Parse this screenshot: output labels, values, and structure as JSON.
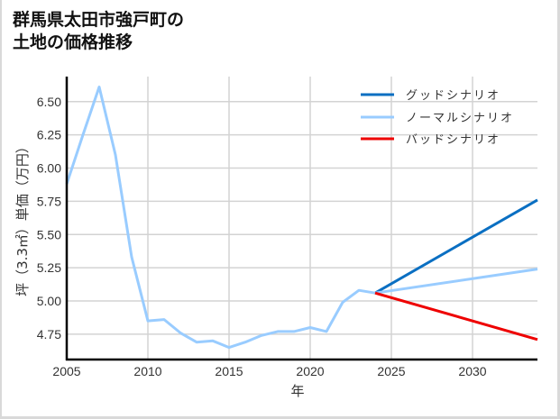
{
  "title_line1": "群馬県太田市強戸町の",
  "title_line2": "土地の価格推移",
  "chart_data": {
    "type": "line",
    "title": "群馬県太田市強戸町の土地の価格推移",
    "xlabel": "年",
    "ylabel": "坪（3.3㎡）単価（万円）",
    "xlim": [
      2005,
      2034
    ],
    "ylim": [
      4.57,
      6.73
    ],
    "x_ticks": [
      2005,
      2010,
      2015,
      2020,
      2025,
      2030
    ],
    "y_ticks": [
      4.75,
      5.0,
      5.25,
      5.5,
      5.75,
      6.0,
      6.25,
      6.5
    ],
    "y_tick_labels": [
      "4.75",
      "5.00",
      "5.25",
      "5.50",
      "5.75",
      "6.00",
      "6.25",
      "6.50"
    ],
    "grid": true,
    "legend_position": "upper right",
    "series": [
      {
        "name": "グッドシナリオ",
        "color": "#0a6fc2",
        "x": [
          2024,
          2034
        ],
        "values": [
          5.06,
          5.76
        ]
      },
      {
        "name": "ノーマルシナリオ",
        "color": "#99ccff",
        "x": [
          2005,
          2006,
          2007,
          2008,
          2009,
          2010,
          2011,
          2012,
          2013,
          2014,
          2015,
          2016,
          2017,
          2018,
          2019,
          2020,
          2021,
          2022,
          2023,
          2024,
          2034
        ],
        "values": [
          5.88,
          6.25,
          6.61,
          6.1,
          5.33,
          4.85,
          4.86,
          4.76,
          4.69,
          4.7,
          4.65,
          4.69,
          4.74,
          4.77,
          4.77,
          4.8,
          4.77,
          4.99,
          5.08,
          5.06,
          5.24
        ]
      },
      {
        "name": "バッドシナリオ",
        "color": "#ee0000",
        "x": [
          2024,
          2034
        ],
        "values": [
          5.06,
          4.71
        ]
      }
    ]
  }
}
